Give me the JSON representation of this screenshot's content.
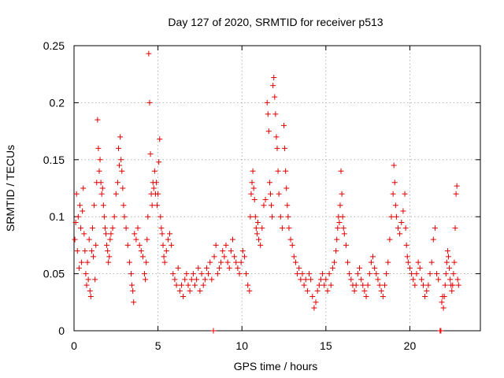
{
  "chart_data": {
    "type": "scatter",
    "title": "Day 127 of 2020, SRMTID for receiver p513",
    "xlabel": "GPS time / hours",
    "ylabel": "SRMTID / TECUs",
    "xlim": [
      0,
      24.2
    ],
    "ylim": [
      0,
      0.25
    ],
    "xticks": [
      0,
      5,
      10,
      15,
      20
    ],
    "xtick_labels": [
      "0",
      "5",
      "10",
      "15",
      "20"
    ],
    "yticks": [
      0,
      0.05,
      0.1,
      0.15,
      0.2,
      0.25
    ],
    "ytick_labels": [
      "0",
      "0.05",
      "0.1",
      "0.15",
      "0.2",
      "0.25"
    ],
    "grid": true,
    "marker": "+",
    "color": "#e00000",
    "series": [
      {
        "name": "SRMTID",
        "points": [
          [
            0.05,
            0.08
          ],
          [
            0.1,
            0.095
          ],
          [
            0.15,
            0.12
          ],
          [
            0.2,
            0.07
          ],
          [
            0.25,
            0.1
          ],
          [
            0.3,
            0.055
          ],
          [
            0.35,
            0.11
          ],
          [
            0.4,
            0.09
          ],
          [
            0.45,
            0.06
          ],
          [
            0.5,
            0.105
          ],
          [
            0.55,
            0.125
          ],
          [
            0.6,
            0.085
          ],
          [
            0.65,
            0.07
          ],
          [
            0.7,
            0.05
          ],
          [
            0.75,
            0.04
          ],
          [
            0.8,
            0.06
          ],
          [
            0.85,
            0.045
          ],
          [
            0.9,
            0.08
          ],
          [
            0.95,
            0.035
          ],
          [
            1.0,
            0.03
          ],
          [
            1.05,
            0.07
          ],
          [
            1.1,
            0.09
          ],
          [
            1.15,
            0.065
          ],
          [
            1.2,
            0.11
          ],
          [
            1.25,
            0.045
          ],
          [
            1.3,
            0.075
          ],
          [
            1.35,
            0.13
          ],
          [
            1.4,
            0.185
          ],
          [
            1.45,
            0.16
          ],
          [
            1.5,
            0.14
          ],
          [
            1.55,
            0.15
          ],
          [
            1.6,
            0.13
          ],
          [
            1.65,
            0.12
          ],
          [
            1.7,
            0.125
          ],
          [
            1.75,
            0.11
          ],
          [
            1.8,
            0.1
          ],
          [
            1.85,
            0.09
          ],
          [
            1.9,
            0.085
          ],
          [
            1.95,
            0.075
          ],
          [
            2.0,
            0.07
          ],
          [
            2.05,
            0.06
          ],
          [
            2.1,
            0.065
          ],
          [
            2.15,
            0.08
          ],
          [
            2.2,
            0.085
          ],
          [
            2.3,
            0.09
          ],
          [
            2.4,
            0.1
          ],
          [
            2.5,
            0.12
          ],
          [
            2.6,
            0.13
          ],
          [
            2.65,
            0.16
          ],
          [
            2.7,
            0.145
          ],
          [
            2.75,
            0.17
          ],
          [
            2.8,
            0.15
          ],
          [
            2.85,
            0.14
          ],
          [
            2.9,
            0.125
          ],
          [
            2.95,
            0.11
          ],
          [
            3.0,
            0.1
          ],
          [
            3.1,
            0.09
          ],
          [
            3.2,
            0.075
          ],
          [
            3.3,
            0.06
          ],
          [
            3.4,
            0.05
          ],
          [
            3.45,
            0.04
          ],
          [
            3.5,
            0.035
          ],
          [
            3.55,
            0.025
          ],
          [
            3.6,
            0.085
          ],
          [
            3.7,
            0.08
          ],
          [
            3.8,
            0.09
          ],
          [
            3.9,
            0.075
          ],
          [
            4.0,
            0.07
          ],
          [
            4.1,
            0.065
          ],
          [
            4.2,
            0.05
          ],
          [
            4.25,
            0.045
          ],
          [
            4.3,
            0.06
          ],
          [
            4.35,
            0.08
          ],
          [
            4.4,
            0.1
          ],
          [
            4.45,
            0.243
          ],
          [
            4.5,
            0.2
          ],
          [
            4.55,
            0.155
          ],
          [
            4.6,
            0.12
          ],
          [
            4.65,
            0.11
          ],
          [
            4.7,
            0.13
          ],
          [
            4.75,
            0.125
          ],
          [
            4.8,
            0.14
          ],
          [
            4.85,
            0.12
          ],
          [
            4.9,
            0.13
          ],
          [
            4.95,
            0.11
          ],
          [
            5.0,
            0.12
          ],
          [
            5.05,
            0.148
          ],
          [
            5.1,
            0.168
          ],
          [
            5.15,
            0.1
          ],
          [
            5.2,
            0.09
          ],
          [
            5.25,
            0.085
          ],
          [
            5.3,
            0.075
          ],
          [
            5.35,
            0.065
          ],
          [
            5.4,
            0.06
          ],
          [
            5.5,
            0.07
          ],
          [
            5.6,
            0.08
          ],
          [
            5.7,
            0.085
          ],
          [
            5.8,
            0.075
          ],
          [
            5.9,
            0.05
          ],
          [
            6.0,
            0.045
          ],
          [
            6.1,
            0.04
          ],
          [
            6.2,
            0.055
          ],
          [
            6.3,
            0.035
          ],
          [
            6.4,
            0.04
          ],
          [
            6.5,
            0.03
          ],
          [
            6.6,
            0.045
          ],
          [
            6.7,
            0.05
          ],
          [
            6.8,
            0.04
          ],
          [
            6.9,
            0.035
          ],
          [
            7.0,
            0.045
          ],
          [
            7.1,
            0.05
          ],
          [
            7.2,
            0.04
          ],
          [
            7.3,
            0.045
          ],
          [
            7.4,
            0.055
          ],
          [
            7.5,
            0.035
          ],
          [
            7.6,
            0.05
          ],
          [
            7.7,
            0.04
          ],
          [
            7.8,
            0.045
          ],
          [
            7.9,
            0.055
          ],
          [
            8.0,
            0.05
          ],
          [
            8.1,
            0.06
          ],
          [
            8.2,
            0.045
          ],
          [
            8.3,
            0.0
          ],
          [
            8.35,
            0.065
          ],
          [
            8.45,
            0.075
          ],
          [
            8.55,
            0.05
          ],
          [
            8.65,
            0.055
          ],
          [
            8.75,
            0.06
          ],
          [
            8.85,
            0.07
          ],
          [
            8.95,
            0.065
          ],
          [
            9.05,
            0.075
          ],
          [
            9.15,
            0.06
          ],
          [
            9.25,
            0.055
          ],
          [
            9.35,
            0.07
          ],
          [
            9.45,
            0.08
          ],
          [
            9.55,
            0.065
          ],
          [
            9.65,
            0.06
          ],
          [
            9.75,
            0.055
          ],
          [
            9.85,
            0.05
          ],
          [
            9.95,
            0.06
          ],
          [
            10.05,
            0.07
          ],
          [
            10.15,
            0.065
          ],
          [
            10.25,
            0.05
          ],
          [
            10.35,
            0.04
          ],
          [
            10.45,
            0.035
          ],
          [
            10.5,
            0.1
          ],
          [
            10.55,
            0.12
          ],
          [
            10.6,
            0.13
          ],
          [
            10.65,
            0.14
          ],
          [
            10.7,
            0.125
          ],
          [
            10.75,
            0.115
          ],
          [
            10.8,
            0.1
          ],
          [
            10.85,
            0.09
          ],
          [
            10.9,
            0.085
          ],
          [
            10.95,
            0.095
          ],
          [
            11.0,
            0.08
          ],
          [
            11.1,
            0.075
          ],
          [
            11.2,
            0.09
          ],
          [
            11.3,
            0.11
          ],
          [
            11.4,
            0.115
          ],
          [
            11.5,
            0.2
          ],
          [
            11.55,
            0.19
          ],
          [
            11.6,
            0.175
          ],
          [
            11.65,
            0.13
          ],
          [
            11.7,
            0.12
          ],
          [
            11.75,
            0.11
          ],
          [
            11.8,
            0.1
          ],
          [
            11.85,
            0.215
          ],
          [
            11.9,
            0.222
          ],
          [
            11.95,
            0.205
          ],
          [
            12.0,
            0.19
          ],
          [
            12.05,
            0.17
          ],
          [
            12.1,
            0.16
          ],
          [
            12.15,
            0.14
          ],
          [
            12.2,
            0.12
          ],
          [
            12.3,
            0.1
          ],
          [
            12.4,
            0.09
          ],
          [
            12.5,
            0.18
          ],
          [
            12.55,
            0.16
          ],
          [
            12.6,
            0.14
          ],
          [
            12.65,
            0.125
          ],
          [
            12.7,
            0.11
          ],
          [
            12.75,
            0.1
          ],
          [
            12.8,
            0.09
          ],
          [
            12.9,
            0.08
          ],
          [
            13.0,
            0.075
          ],
          [
            13.1,
            0.065
          ],
          [
            13.2,
            0.06
          ],
          [
            13.3,
            0.05
          ],
          [
            13.4,
            0.055
          ],
          [
            13.5,
            0.045
          ],
          [
            13.6,
            0.05
          ],
          [
            13.7,
            0.04
          ],
          [
            13.8,
            0.045
          ],
          [
            13.9,
            0.035
          ],
          [
            14.0,
            0.05
          ],
          [
            14.1,
            0.045
          ],
          [
            14.2,
            0.03
          ],
          [
            14.3,
            0.02
          ],
          [
            14.4,
            0.025
          ],
          [
            14.5,
            0.035
          ],
          [
            14.6,
            0.04
          ],
          [
            14.7,
            0.045
          ],
          [
            14.8,
            0.05
          ],
          [
            14.9,
            0.04
          ],
          [
            15.0,
            0.045
          ],
          [
            15.1,
            0.035
          ],
          [
            15.2,
            0.05
          ],
          [
            15.3,
            0.04
          ],
          [
            15.4,
            0.055
          ],
          [
            15.5,
            0.06
          ],
          [
            15.6,
            0.07
          ],
          [
            15.65,
            0.08
          ],
          [
            15.7,
            0.09
          ],
          [
            15.75,
            0.1
          ],
          [
            15.8,
            0.095
          ],
          [
            15.85,
            0.11
          ],
          [
            15.9,
            0.14
          ],
          [
            15.95,
            0.12
          ],
          [
            16.0,
            0.1
          ],
          [
            16.05,
            0.09
          ],
          [
            16.1,
            0.085
          ],
          [
            16.2,
            0.075
          ],
          [
            16.3,
            0.06
          ],
          [
            16.4,
            0.05
          ],
          [
            16.5,
            0.045
          ],
          [
            16.6,
            0.04
          ],
          [
            16.7,
            0.035
          ],
          [
            16.8,
            0.04
          ],
          [
            16.9,
            0.05
          ],
          [
            17.0,
            0.055
          ],
          [
            17.1,
            0.045
          ],
          [
            17.2,
            0.04
          ],
          [
            17.3,
            0.035
          ],
          [
            17.4,
            0.03
          ],
          [
            17.5,
            0.04
          ],
          [
            17.6,
            0.05
          ],
          [
            17.7,
            0.06
          ],
          [
            17.8,
            0.065
          ],
          [
            17.9,
            0.055
          ],
          [
            18.0,
            0.05
          ],
          [
            18.1,
            0.045
          ],
          [
            18.2,
            0.04
          ],
          [
            18.3,
            0.035
          ],
          [
            18.4,
            0.03
          ],
          [
            18.5,
            0.04
          ],
          [
            18.6,
            0.05
          ],
          [
            18.7,
            0.06
          ],
          [
            18.8,
            0.08
          ],
          [
            18.9,
            0.1
          ],
          [
            19.0,
            0.12
          ],
          [
            19.05,
            0.145
          ],
          [
            19.1,
            0.13
          ],
          [
            19.15,
            0.11
          ],
          [
            19.2,
            0.1
          ],
          [
            19.3,
            0.09
          ],
          [
            19.4,
            0.085
          ],
          [
            19.5,
            0.095
          ],
          [
            19.6,
            0.105
          ],
          [
            19.7,
            0.12
          ],
          [
            19.75,
            0.09
          ],
          [
            19.8,
            0.075
          ],
          [
            19.85,
            0.065
          ],
          [
            19.9,
            0.06
          ],
          [
            20.0,
            0.055
          ],
          [
            20.1,
            0.05
          ],
          [
            20.2,
            0.045
          ],
          [
            20.3,
            0.04
          ],
          [
            20.4,
            0.05
          ],
          [
            20.5,
            0.06
          ],
          [
            20.6,
            0.055
          ],
          [
            20.7,
            0.045
          ],
          [
            20.8,
            0.04
          ],
          [
            20.9,
            0.03
          ],
          [
            21.0,
            0.035
          ],
          [
            21.1,
            0.04
          ],
          [
            21.2,
            0.05
          ],
          [
            21.3,
            0.06
          ],
          [
            21.4,
            0.08
          ],
          [
            21.5,
            0.09
          ],
          [
            21.6,
            0.05
          ],
          [
            21.7,
            0.045
          ],
          [
            21.8,
            0.0
          ],
          [
            21.85,
            0.0
          ],
          [
            21.9,
            0.025
          ],
          [
            21.95,
            0.03
          ],
          [
            22.0,
            0.02
          ],
          [
            22.05,
            0.03
          ],
          [
            22.1,
            0.04
          ],
          [
            22.15,
            0.05
          ],
          [
            22.2,
            0.06
          ],
          [
            22.25,
            0.07
          ],
          [
            22.3,
            0.065
          ],
          [
            22.35,
            0.055
          ],
          [
            22.4,
            0.045
          ],
          [
            22.45,
            0.04
          ],
          [
            22.5,
            0.035
          ],
          [
            22.55,
            0.04
          ],
          [
            22.6,
            0.05
          ],
          [
            22.65,
            0.06
          ],
          [
            22.7,
            0.09
          ],
          [
            22.75,
            0.12
          ],
          [
            22.8,
            0.127
          ],
          [
            22.85,
            0.045
          ],
          [
            22.9,
            0.04
          ]
        ]
      }
    ]
  }
}
